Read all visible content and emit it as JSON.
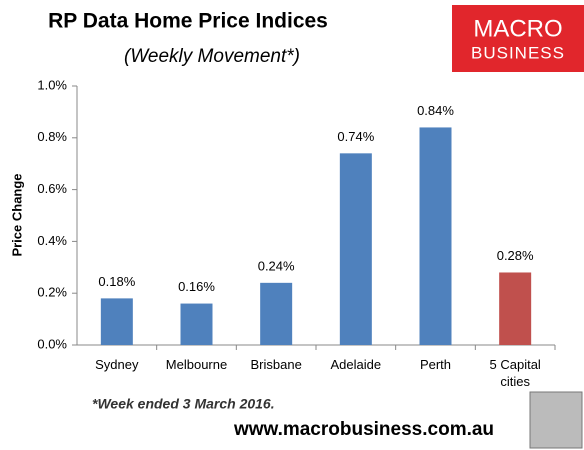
{
  "chart_data": {
    "type": "bar",
    "title": "RP Data Home Price Indices",
    "subtitle": "(Weekly Movement*)",
    "y_label": "Price Change",
    "categories": [
      "Sydney",
      "Melbourne",
      "Brisbane",
      "Adelaide",
      "Perth",
      "5 Capital cities"
    ],
    "values": [
      0.18,
      0.16,
      0.24,
      0.74,
      0.84,
      0.28
    ],
    "value_labels": [
      "0.18%",
      "0.16%",
      "0.24%",
      "0.74%",
      "0.84%",
      "0.28%"
    ],
    "colors": [
      "#4f81bd",
      "#4f81bd",
      "#4f81bd",
      "#4f81bd",
      "#4f81bd",
      "#c0504d"
    ],
    "ylim": [
      0,
      1
    ],
    "yticks": [
      {
        "value": 0,
        "label": "0.0%"
      },
      {
        "value": 0.2,
        "label": "0.2%"
      },
      {
        "value": 0.4,
        "label": "0.4%"
      },
      {
        "value": 0.6,
        "label": "0.6%"
      },
      {
        "value": 0.8,
        "label": "0.8%"
      },
      {
        "value": 1,
        "label": "1.0%"
      }
    ],
    "grid": false,
    "footnote": "*Week ended 3 March 2016.",
    "source": "www.macrobusiness.com.au",
    "logo_text": [
      "MACRO",
      "BUSINESS"
    ]
  }
}
